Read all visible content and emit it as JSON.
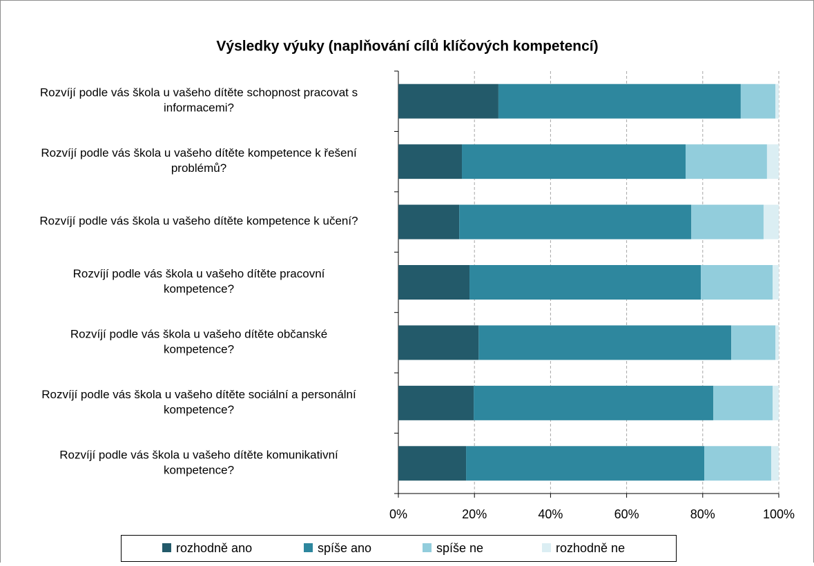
{
  "chart_data": {
    "type": "stacked_bar_horizontal",
    "title": "Výsledky výuky (naplňování cílů klíčových kompetencí)",
    "categories": [
      "Rozvíjí podle vás škola u vašeho dítěte schopnost pracovat s informacemi?",
      "Rozvíjí podle vás škola u vašeho dítěte kompetence k řešení problémů?",
      "Rozvíjí podle vás škola u vašeho dítěte kompetence k učení?",
      "Rozvíjí podle vás škola u vašeho dítěte pracovní kompetence?",
      "Rozvíjí podle vás škola u vašeho dítěte občanské kompetence?",
      "Rozvíjí podle vás škola u vašeho dítěte sociální a personální kompetence?",
      "Rozvíjí podle vás škola u vašeho dítěte komunikativní kompetence?"
    ],
    "series": [
      {
        "name": "rozhodně ano",
        "color": "#235a6a",
        "values": [
          26.3,
          16.7,
          16.0,
          18.7,
          21.1,
          19.8,
          17.8
        ]
      },
      {
        "name": "spíše ano",
        "color": "#2e879e",
        "values": [
          63.7,
          58.8,
          61.0,
          60.8,
          66.4,
          63.0,
          62.6
        ]
      },
      {
        "name": "spíše ne",
        "color": "#92cddc",
        "values": [
          9.1,
          21.4,
          19.0,
          18.9,
          11.6,
          15.6,
          17.6
        ]
      },
      {
        "name": "rozhodně ne",
        "color": "#dbeef3",
        "values": [
          0.9,
          3.1,
          4.0,
          1.6,
          0.9,
          1.6,
          2.0
        ]
      }
    ],
    "xlim": [
      0,
      100
    ],
    "xticks": [
      {
        "value": 0,
        "label": "0%"
      },
      {
        "value": 20,
        "label": "20%"
      },
      {
        "value": 40,
        "label": "40%"
      },
      {
        "value": 60,
        "label": "60%"
      },
      {
        "value": 80,
        "label": "80%"
      },
      {
        "value": 100,
        "label": "100%"
      }
    ],
    "grid": true,
    "legend": "bottom"
  }
}
